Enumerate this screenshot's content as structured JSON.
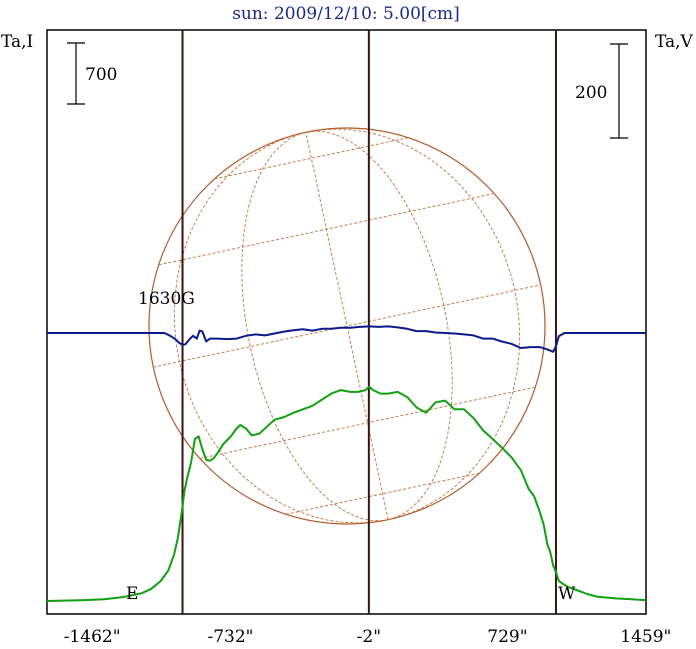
{
  "title": "sun: 2009/12/10: 5.00[cm]",
  "left_axis_label": "Ta,I",
  "right_axis_label": "Ta,V",
  "scale_bar_left": "700",
  "scale_bar_right": "200",
  "annotation": "1630G",
  "marker_east": "E",
  "marker_west": "W",
  "colors": {
    "intensity": "#10a010",
    "polarization": "#0a1a8c",
    "disk": "#b45a28",
    "grid": "#c0703a",
    "limb_lines": "#3a1410"
  },
  "chart_data": {
    "type": "line",
    "title": "sun: 2009/12/10: 5.00[cm]",
    "x_unit": "arcsec",
    "xlim": [
      -1700,
      1460
    ],
    "x_tick_labels": [
      "-1462\"",
      "-732\"",
      "-2\"",
      "729\"",
      "1459\""
    ],
    "x_ticks": [
      -1462,
      -732,
      -2,
      729,
      1459
    ],
    "limb_positions": [
      -985,
      985
    ],
    "series": [
      {
        "name": "Ta,I",
        "color": "#10a010",
        "x": [
          -1700,
          -1500,
          -1400,
          -1300,
          -1200,
          -1150,
          -1100,
          -1060,
          -1030,
          -1010,
          -995,
          -985,
          -975,
          -960,
          -940,
          -920,
          -900,
          -880,
          -860,
          -840,
          -820,
          -800,
          -770,
          -730,
          -700,
          -680,
          -650,
          -620,
          -580,
          -540,
          -500,
          -450,
          -400,
          -350,
          -300,
          -250,
          -200,
          -150,
          -100,
          -60,
          -20,
          0,
          20,
          60,
          100,
          150,
          200,
          250,
          300,
          350,
          400,
          450,
          500,
          550,
          600,
          650,
          700,
          750,
          800,
          840,
          870,
          900,
          920,
          940,
          955,
          970,
          985,
          1000,
          1020,
          1050,
          1100,
          1150,
          1200,
          1300,
          1459
        ],
        "y": [
          0,
          10,
          20,
          45,
          90,
          140,
          230,
          350,
          530,
          720,
          930,
          1080,
          1260,
          1420,
          1590,
          1860,
          1890,
          1740,
          1620,
          1610,
          1640,
          1700,
          1800,
          1890,
          1980,
          2020,
          1980,
          1900,
          1920,
          2000,
          2080,
          2110,
          2160,
          2200,
          2240,
          2310,
          2380,
          2420,
          2400,
          2400,
          2420,
          2460,
          2420,
          2380,
          2380,
          2400,
          2340,
          2220,
          2160,
          2280,
          2300,
          2200,
          2200,
          2100,
          1960,
          1860,
          1760,
          1650,
          1500,
          1290,
          1200,
          1020,
          880,
          650,
          560,
          410,
          330,
          230,
          200,
          160,
          120,
          80,
          50,
          30,
          10
        ]
      },
      {
        "name": "Ta,V",
        "color": "#0a1a8c",
        "x": [
          -1700,
          -1080,
          -1050,
          -1020,
          -1000,
          -985,
          -970,
          -950,
          -930,
          -910,
          -895,
          -880,
          -860,
          -840,
          -800,
          -750,
          -700,
          -650,
          -600,
          -550,
          -500,
          -450,
          -400,
          -350,
          -300,
          -250,
          -200,
          -150,
          -100,
          -50,
          0,
          50,
          100,
          150,
          200,
          250,
          300,
          350,
          400,
          450,
          500,
          550,
          600,
          650,
          700,
          750,
          800,
          850,
          900,
          940,
          970,
          985,
          1000,
          1030,
          1100,
          1459
        ],
        "y": [
          0,
          0,
          -6,
          -14,
          -22,
          -25,
          -24,
          -14,
          -6,
          -12,
          5,
          3,
          -18,
          -12,
          -12,
          -13,
          -12,
          -6,
          -3,
          -5,
          -1,
          3,
          6,
          8,
          5,
          9,
          9,
          11,
          11,
          13,
          14,
          13,
          14,
          12,
          9,
          4,
          4,
          1,
          0,
          -1,
          -3,
          -5,
          -12,
          -12,
          -18,
          -23,
          -32,
          -30,
          -30,
          -35,
          -40,
          -28,
          -7,
          0,
          0,
          0
        ]
      }
    ]
  }
}
